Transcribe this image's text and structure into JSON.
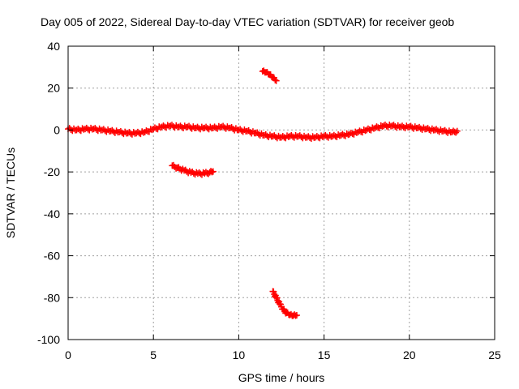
{
  "chart_data": {
    "type": "scatter",
    "title": "Day 005 of 2022, Sidereal Day-to-day VTEC variation (SDTVAR) for receiver geob",
    "xlabel": "GPS time / hours",
    "ylabel": "SDTVAR / TECUs",
    "xlim": [
      0,
      25
    ],
    "ylim": [
      -100,
      40
    ],
    "xticks": [
      0,
      5,
      10,
      15,
      20,
      25
    ],
    "yticks": [
      -100,
      -80,
      -60,
      -40,
      -20,
      0,
      20,
      40
    ],
    "grid": true,
    "marker": "plus",
    "color": "#ff0000",
    "series": [
      {
        "name": "main trace",
        "points": [
          [
            0.0,
            0.5
          ],
          [
            0.5,
            0.0
          ],
          [
            1.0,
            0.5
          ],
          [
            1.5,
            0.5
          ],
          [
            2.0,
            0.0
          ],
          [
            2.5,
            -0.5
          ],
          [
            3.0,
            -1.0
          ],
          [
            3.5,
            -1.5
          ],
          [
            4.0,
            -1.5
          ],
          [
            4.5,
            -1.0
          ],
          [
            5.0,
            0.5
          ],
          [
            5.5,
            1.5
          ],
          [
            6.0,
            2.0
          ],
          [
            6.5,
            1.5
          ],
          [
            7.0,
            1.5
          ],
          [
            7.5,
            1.0
          ],
          [
            8.0,
            1.0
          ],
          [
            8.5,
            1.0
          ],
          [
            9.0,
            1.5
          ],
          [
            9.5,
            1.0
          ],
          [
            10.0,
            0.0
          ],
          [
            10.5,
            -0.5
          ],
          [
            11.0,
            -1.5
          ],
          [
            11.5,
            -2.5
          ],
          [
            12.0,
            -3.0
          ],
          [
            12.5,
            -3.5
          ],
          [
            13.0,
            -3.0
          ],
          [
            13.5,
            -3.0
          ],
          [
            14.0,
            -3.5
          ],
          [
            14.5,
            -3.5
          ],
          [
            15.0,
            -3.0
          ],
          [
            15.5,
            -3.0
          ],
          [
            16.0,
            -2.5
          ],
          [
            16.5,
            -2.0
          ],
          [
            17.0,
            -1.0
          ],
          [
            17.5,
            0.0
          ],
          [
            18.0,
            1.0
          ],
          [
            18.5,
            2.0
          ],
          [
            19.0,
            2.0
          ],
          [
            19.5,
            1.5
          ],
          [
            20.0,
            1.5
          ],
          [
            20.5,
            1.0
          ],
          [
            21.0,
            0.5
          ],
          [
            21.5,
            0.0
          ],
          [
            22.0,
            -0.5
          ],
          [
            22.5,
            -1.0
          ],
          [
            22.8,
            -0.5
          ]
        ]
      },
      {
        "name": "upper arc",
        "points": [
          [
            11.4,
            28.0
          ],
          [
            11.6,
            27.5
          ],
          [
            11.8,
            26.5
          ],
          [
            12.0,
            25.0
          ],
          [
            12.2,
            23.5
          ]
        ]
      },
      {
        "name": "lower-left arc",
        "points": [
          [
            6.1,
            -17.0
          ],
          [
            6.4,
            -18.0
          ],
          [
            6.8,
            -19.3
          ],
          [
            7.2,
            -20.3
          ],
          [
            7.6,
            -20.8
          ],
          [
            8.0,
            -20.7
          ],
          [
            8.3,
            -20.2
          ],
          [
            8.5,
            -19.8
          ]
        ]
      },
      {
        "name": "bottom arc",
        "points": [
          [
            12.0,
            -77.0
          ],
          [
            12.2,
            -80.0
          ],
          [
            12.4,
            -83.0
          ],
          [
            12.6,
            -85.5
          ],
          [
            12.8,
            -87.3
          ],
          [
            13.0,
            -88.3
          ],
          [
            13.2,
            -88.6
          ],
          [
            13.4,
            -88.4
          ]
        ]
      }
    ]
  }
}
